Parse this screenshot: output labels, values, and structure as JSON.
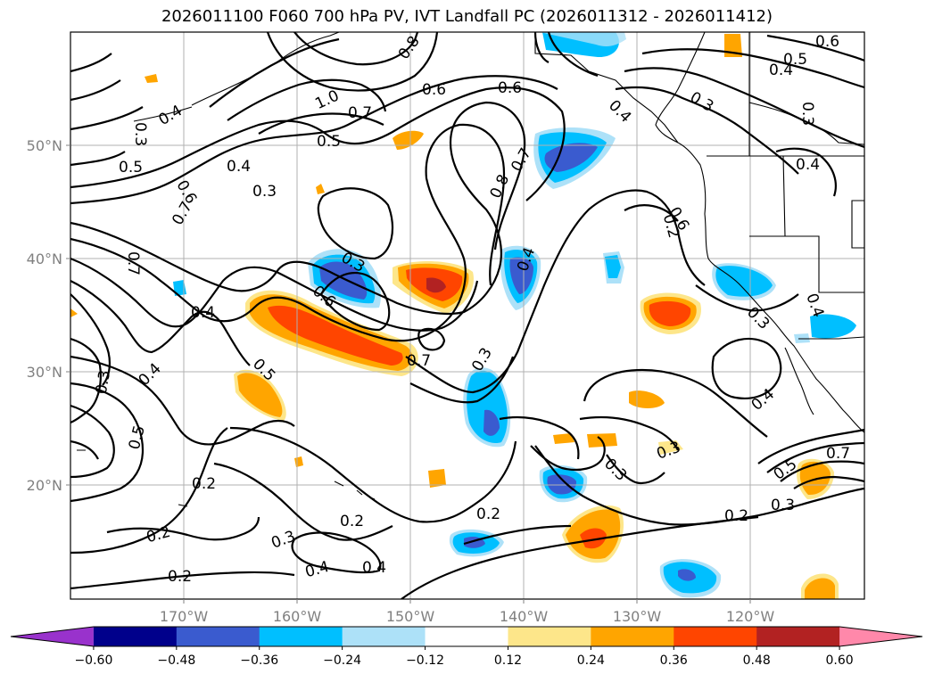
{
  "title": "2026011100 F060 700 hPa PV, IVT Landfall PC (2026011312 - 2026011412)",
  "lon_ticks": [
    "170°W",
    "160°W",
    "150°W",
    "140°W",
    "130°W",
    "120°W"
  ],
  "lat_ticks": [
    "50°N",
    "40°N",
    "30°N",
    "20°N"
  ],
  "colorbar": {
    "colors": [
      "#9932cc",
      "#00008b",
      "#3a5bcf",
      "#00bfff",
      "#ade1f8",
      "#ffffff",
      "#fde68a",
      "#ffa500",
      "#ff4500",
      "#b22222",
      "#ff88aa"
    ],
    "labels": [
      "−0.60",
      "−0.48",
      "−0.36",
      "−0.24",
      "−0.12",
      "0.12",
      "0.24",
      "0.36",
      "0.48",
      "0.60"
    ]
  },
  "contour_labels": [
    "0.8",
    "0.6",
    "0.5",
    "0.4",
    "0.6",
    "0.5",
    "0.4",
    "0.3",
    "0.4",
    "1.0",
    "0.7",
    "0.5",
    "0.6",
    "0.6",
    "0.3",
    "0.3",
    "0.4",
    "0.6",
    "0.7",
    "0.3",
    "0.7",
    "0.4",
    "0.3",
    "0.6",
    "0.7",
    "0.8",
    "0.7",
    "0.4",
    "0.2",
    "0.4",
    "0.3",
    "0.3",
    "0.4",
    "0.3",
    "0.5",
    "0.4",
    "0.3",
    "0.5",
    "0.2",
    "0.2",
    "0.3",
    "0.2",
    "0.2",
    "0.2",
    "0.3",
    "0.4",
    "0.4",
    "0.4",
    "0.5",
    "0.7",
    "0.2",
    "0.3"
  ]
}
